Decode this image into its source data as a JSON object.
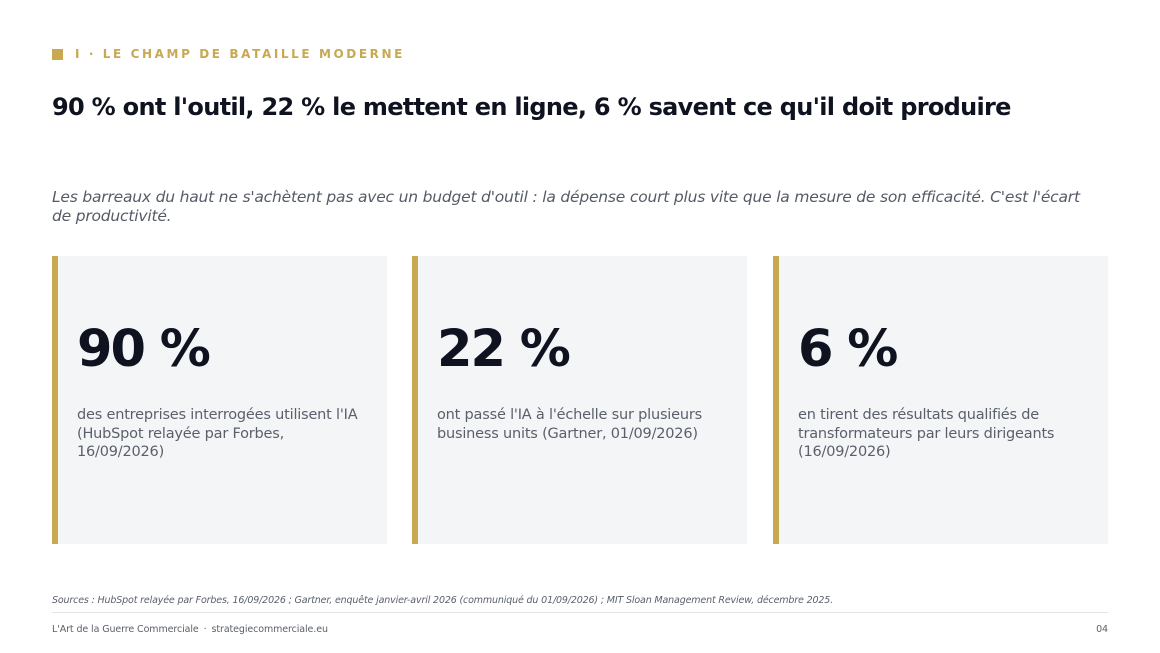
{
  "slide": {
    "eyebrow": "I · LE CHAMP DE BATAILLE MODERNE",
    "title": "90 % ont l'outil, 22 % le mettent en ligne, 6 % savent ce qu'il doit produire",
    "lede": "Les barreaux du haut ne s'achètent pas avec un budget d'outil : la dépense court plus vite que la mesure de son efficacité. C'est l'écart de productivité."
  },
  "stats": [
    {
      "value": "90 %",
      "description": "des entreprises interrogées utilisent l'IA (HubSpot relayée par Forbes, 16/09/2026)"
    },
    {
      "value": "22 %",
      "description": "ont passé l'IA à l'échelle sur plusieurs business units (Gartner, 01/09/2026)"
    },
    {
      "value": "6 %",
      "description": "en tirent des résultats qualifiés de transformateurs par leurs dirigeants (16/09/2026)"
    }
  ],
  "sources": "Sources : HubSpot relayée par Forbes, 16/09/2026 ; Gartner, enquête janvier-avril 2026 (communiqué du 01/09/2026) ; MIT Sloan Management Review, décembre 2025.",
  "footer": {
    "brand": "L'Art de la Guerre Commerciale",
    "separator": "·",
    "website": "strategiecommerciale.eu",
    "page_number": "04"
  },
  "colors": {
    "accent": "#c8a951",
    "title": "#0f1320",
    "muted_text": "#5a606b",
    "card_background": "#f4f5f7"
  }
}
